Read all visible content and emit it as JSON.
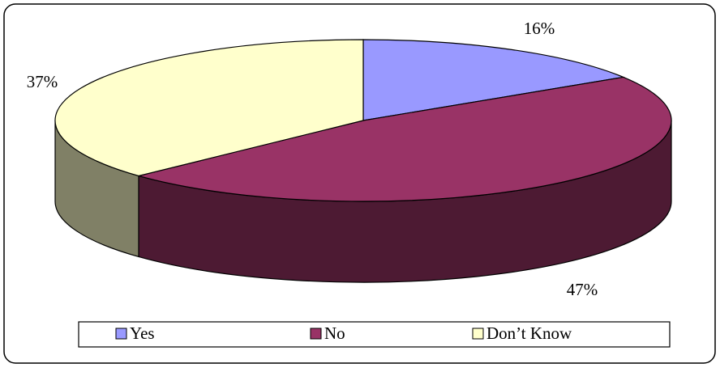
{
  "chart_data": {
    "type": "pie",
    "categories": [
      "Yes",
      "No",
      "Don’t Know"
    ],
    "values": [
      16,
      47,
      37
    ],
    "value_labels": [
      "16%",
      "47%",
      "37%"
    ],
    "colors": [
      "#9999ff",
      "#993366",
      "#ffffcc"
    ],
    "legend": "bottom"
  }
}
